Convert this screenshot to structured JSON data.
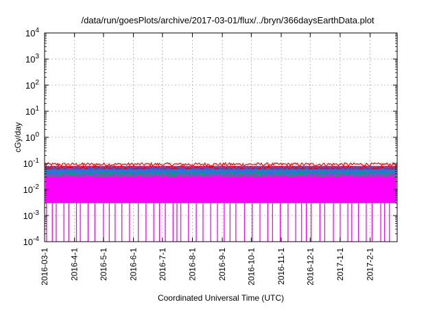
{
  "chart_data": {
    "type": "line",
    "title": "/data/run/goesPlots/archive/2017-03-01/flux/../bryn/366daysEarthData.plot",
    "xlabel": "Coordinated Universal Time (UTC)",
    "ylabel": "cGy/day",
    "yscale": "log",
    "ylim": [
      0.0001,
      10000
    ],
    "xlim": [
      "2016-03-01",
      "2017-03-01"
    ],
    "grid": true,
    "x_ticks": [
      "2016-03-1",
      "2016-4-1",
      "2016-5-1",
      "2016-6-1",
      "2016-7-1",
      "2016-8-1",
      "2016-9-1",
      "2016-10-1",
      "2016-11-1",
      "2016-12-1",
      "2017-1-1",
      "2017-2-1"
    ],
    "y_ticks": [
      {
        "value": 0.0001,
        "mantissa": "10",
        "exp": "-4"
      },
      {
        "value": 0.001,
        "mantissa": "10",
        "exp": "-3"
      },
      {
        "value": 0.01,
        "mantissa": "10",
        "exp": "-2"
      },
      {
        "value": 0.1,
        "mantissa": "10",
        "exp": "-1"
      },
      {
        "value": 1,
        "mantissa": "10",
        "exp": "0"
      },
      {
        "value": 10,
        "mantissa": "10",
        "exp": "1"
      },
      {
        "value": 100,
        "mantissa": "10",
        "exp": "2"
      },
      {
        "value": 1000,
        "mantissa": "10",
        "exp": "3"
      },
      {
        "value": 10000,
        "mantissa": "10",
        "exp": "4"
      }
    ],
    "series": [
      {
        "color": "#ff0000",
        "band": [
          0.05,
          0.08
        ],
        "spikes": [
          [
            "2016-04-10",
            0.1
          ],
          [
            "2016-03-15",
            0.095
          ],
          [
            "2016-07-20",
            0.085
          ]
        ]
      },
      {
        "color": "#2b6bff",
        "band": [
          0.035,
          0.06
        ]
      },
      {
        "color": "#00aa55",
        "band": [
          0.025,
          0.04
        ]
      },
      {
        "color": "#ff00ff",
        "band": [
          0.003,
          0.03
        ],
        "dropouts_to": 0.0001
      }
    ]
  }
}
